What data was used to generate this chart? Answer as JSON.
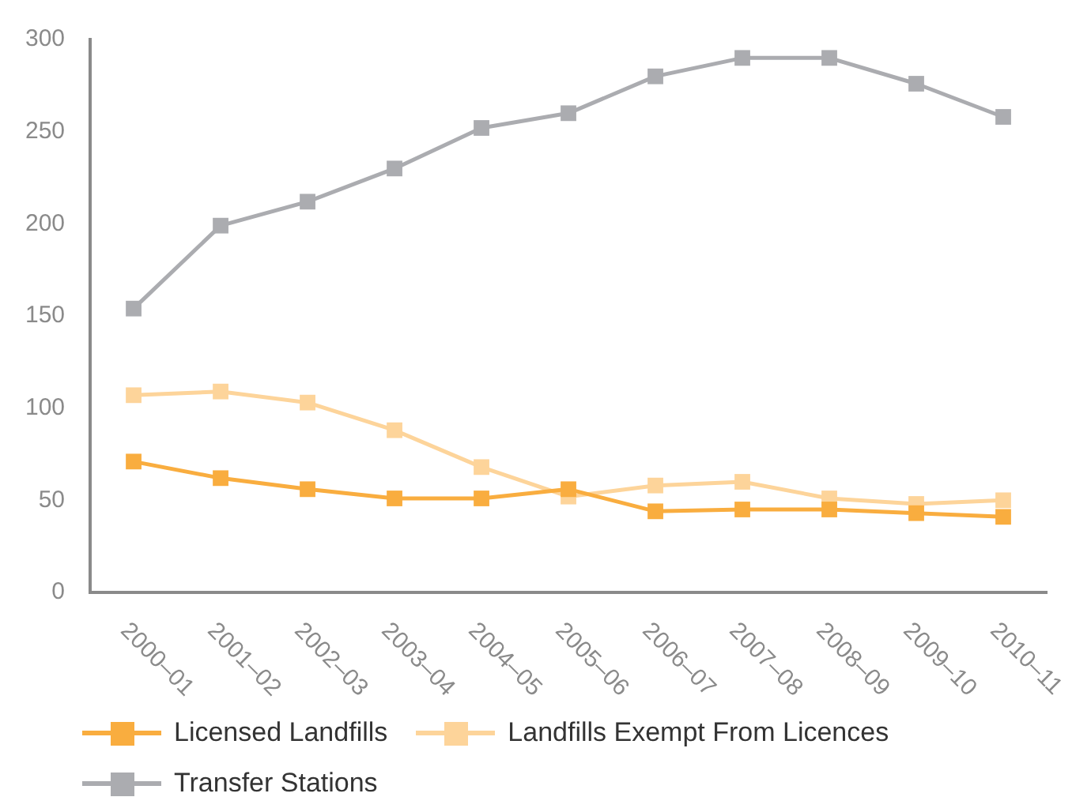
{
  "chart_data": {
    "type": "line",
    "categories": [
      "2000–01",
      "2001–02",
      "2002–03",
      "2003–04",
      "2004–05",
      "2005–06",
      "2006–07",
      "2007–08",
      "2008–09",
      "2009–10",
      "2010–11"
    ],
    "series": [
      {
        "name": "Licensed Landfills",
        "color": "#f9ad3f",
        "values": [
          71,
          62,
          56,
          51,
          51,
          56,
          44,
          45,
          45,
          43,
          41
        ]
      },
      {
        "name": "Landfills Exempt From Licences",
        "color": "#fdd49a",
        "values": [
          107,
          109,
          103,
          88,
          68,
          52,
          58,
          60,
          51,
          48,
          50
        ]
      },
      {
        "name": "Transfer Stations",
        "color": "#abacb0",
        "values": [
          154,
          199,
          212,
          230,
          252,
          260,
          280,
          290,
          290,
          276,
          258
        ]
      }
    ],
    "ylim": [
      0,
      300
    ],
    "yticks": [
      0,
      50,
      100,
      150,
      200,
      250,
      300
    ],
    "grid": false,
    "legend": "bottom",
    "marker": "square",
    "line_style": "solid"
  }
}
